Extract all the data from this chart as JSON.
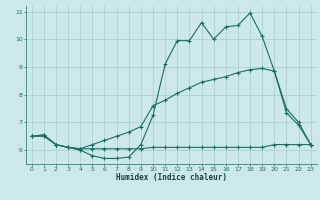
{
  "xlabel": "Humidex (Indice chaleur)",
  "xlim": [
    -0.5,
    23.5
  ],
  "ylim": [
    5.5,
    11.2
  ],
  "yticks": [
    6,
    7,
    8,
    9,
    10,
    11
  ],
  "xticks": [
    0,
    1,
    2,
    3,
    4,
    5,
    6,
    7,
    8,
    9,
    10,
    11,
    12,
    13,
    14,
    15,
    16,
    17,
    18,
    19,
    20,
    21,
    22,
    23
  ],
  "bg_color": "#cce8e8",
  "grid_color": "#aacccc",
  "line_color": "#1a6e64",
  "line1_x": [
    0,
    1,
    2,
    3,
    4,
    5,
    6,
    7,
    8,
    9,
    10,
    11,
    12,
    13,
    14,
    15,
    16,
    17,
    18,
    19,
    20,
    21,
    22,
    23
  ],
  "line1_y": [
    6.5,
    6.55,
    6.2,
    6.1,
    6.0,
    5.8,
    5.7,
    5.7,
    5.75,
    6.2,
    7.25,
    9.1,
    9.95,
    9.95,
    10.6,
    10.0,
    10.45,
    10.5,
    10.95,
    10.1,
    8.85,
    7.35,
    6.9,
    6.2
  ],
  "line2_x": [
    0,
    1,
    2,
    3,
    4,
    5,
    6,
    7,
    8,
    9,
    10,
    11,
    12,
    13,
    14,
    15,
    16,
    17,
    18,
    19,
    20,
    21,
    22,
    23
  ],
  "line2_y": [
    6.5,
    6.5,
    6.2,
    6.1,
    6.05,
    6.05,
    6.05,
    6.05,
    6.05,
    6.05,
    6.1,
    6.1,
    6.1,
    6.1,
    6.1,
    6.1,
    6.1,
    6.1,
    6.1,
    6.1,
    6.2,
    6.2,
    6.2,
    6.2
  ],
  "line3_x": [
    0,
    1,
    2,
    3,
    4,
    5,
    6,
    7,
    8,
    9,
    10,
    11,
    12,
    13,
    14,
    15,
    16,
    17,
    18,
    19,
    20,
    21,
    22,
    23
  ],
  "line3_y": [
    6.5,
    6.55,
    6.2,
    6.1,
    6.05,
    6.2,
    6.35,
    6.5,
    6.65,
    6.85,
    7.6,
    7.8,
    8.05,
    8.25,
    8.45,
    8.55,
    8.65,
    8.8,
    8.9,
    8.95,
    8.85,
    7.5,
    7.0,
    6.2
  ]
}
